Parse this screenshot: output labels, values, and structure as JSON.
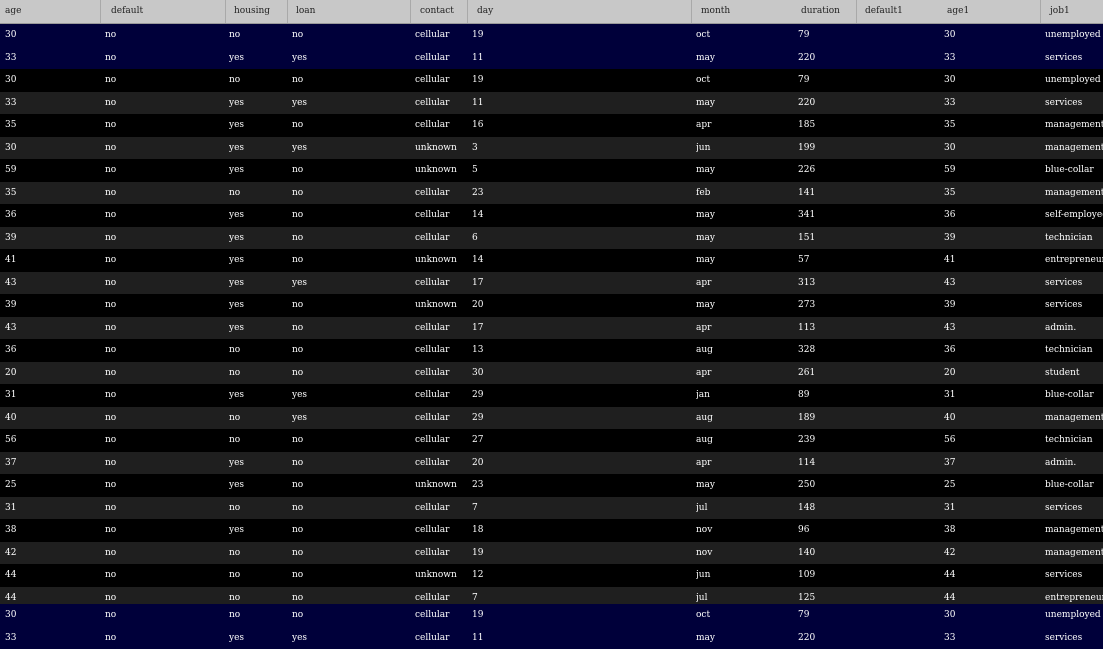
{
  "columns": [
    "age",
    "default",
    "housing",
    "loan",
    "contact",
    "day",
    "month",
    "duration",
    "default1",
    "age1",
    "job1"
  ],
  "pinned_top": [
    [
      "30",
      "no",
      "no",
      "no",
      "cellular",
      "19",
      "oct",
      "79",
      "",
      "30",
      "unemployed"
    ],
    [
      "33",
      "no",
      "yes",
      "yes",
      "cellular",
      "11",
      "may",
      "220",
      "",
      "33",
      "services"
    ]
  ],
  "rows": [
    [
      "30",
      "no",
      "no",
      "no",
      "cellular",
      "19",
      "oct",
      "79",
      "",
      "30",
      "unemployed"
    ],
    [
      "33",
      "no",
      "yes",
      "yes",
      "cellular",
      "11",
      "may",
      "220",
      "",
      "33",
      "services"
    ],
    [
      "35",
      "no",
      "yes",
      "no",
      "cellular",
      "16",
      "apr",
      "185",
      "",
      "35",
      "management"
    ],
    [
      "30",
      "no",
      "yes",
      "yes",
      "unknown",
      "3",
      "jun",
      "199",
      "",
      "30",
      "management"
    ],
    [
      "59",
      "no",
      "yes",
      "no",
      "unknown",
      "5",
      "may",
      "226",
      "",
      "59",
      "blue-collar"
    ],
    [
      "35",
      "no",
      "no",
      "no",
      "cellular",
      "23",
      "feb",
      "141",
      "",
      "35",
      "management"
    ],
    [
      "36",
      "no",
      "yes",
      "no",
      "cellular",
      "14",
      "may",
      "341",
      "",
      "36",
      "self-employed"
    ],
    [
      "39",
      "no",
      "yes",
      "no",
      "cellular",
      "6",
      "may",
      "151",
      "",
      "39",
      "technician"
    ],
    [
      "41",
      "no",
      "yes",
      "no",
      "unknown",
      "14",
      "may",
      "57",
      "",
      "41",
      "entrepreneur"
    ],
    [
      "43",
      "no",
      "yes",
      "yes",
      "cellular",
      "17",
      "apr",
      "313",
      "",
      "43",
      "services"
    ],
    [
      "39",
      "no",
      "yes",
      "no",
      "unknown",
      "20",
      "may",
      "273",
      "",
      "39",
      "services"
    ],
    [
      "43",
      "no",
      "yes",
      "no",
      "cellular",
      "17",
      "apr",
      "113",
      "",
      "43",
      "admin."
    ],
    [
      "36",
      "no",
      "no",
      "no",
      "cellular",
      "13",
      "aug",
      "328",
      "",
      "36",
      "technician"
    ],
    [
      "20",
      "no",
      "no",
      "no",
      "cellular",
      "30",
      "apr",
      "261",
      "",
      "20",
      "student"
    ],
    [
      "31",
      "no",
      "yes",
      "yes",
      "cellular",
      "29",
      "jan",
      "89",
      "",
      "31",
      "blue-collar"
    ],
    [
      "40",
      "no",
      "no",
      "yes",
      "cellular",
      "29",
      "aug",
      "189",
      "",
      "40",
      "management"
    ],
    [
      "56",
      "no",
      "no",
      "no",
      "cellular",
      "27",
      "aug",
      "239",
      "",
      "56",
      "technician"
    ],
    [
      "37",
      "no",
      "yes",
      "no",
      "cellular",
      "20",
      "apr",
      "114",
      "",
      "37",
      "admin."
    ],
    [
      "25",
      "no",
      "yes",
      "no",
      "unknown",
      "23",
      "may",
      "250",
      "",
      "25",
      "blue-collar"
    ],
    [
      "31",
      "no",
      "no",
      "no",
      "cellular",
      "7",
      "jul",
      "148",
      "",
      "31",
      "services"
    ],
    [
      "38",
      "no",
      "yes",
      "no",
      "cellular",
      "18",
      "nov",
      "96",
      "",
      "38",
      "management"
    ],
    [
      "42",
      "no",
      "no",
      "no",
      "cellular",
      "19",
      "nov",
      "140",
      "",
      "42",
      "management"
    ],
    [
      "44",
      "no",
      "no",
      "no",
      "unknown",
      "12",
      "jun",
      "109",
      "",
      "44",
      "services"
    ],
    [
      "44",
      "no",
      "no",
      "no",
      "cellular",
      "7",
      "jul",
      "125",
      "",
      "44",
      "entrepreneur"
    ]
  ],
  "pinned_bottom": [
    [
      "30",
      "no",
      "no",
      "no",
      "cellular",
      "19",
      "oct",
      "79",
      "",
      "30",
      "unemployed"
    ],
    [
      "33",
      "no",
      "yes",
      "yes",
      "cellular",
      "11",
      "may",
      "220",
      "",
      "33",
      "services"
    ]
  ],
  "colors": {
    "header_bg": "#c8c8c8",
    "row_even": "#000000",
    "row_odd": "#1f1f1f",
    "pinned_bg": "#00003a",
    "text": "#ffffff"
  }
}
